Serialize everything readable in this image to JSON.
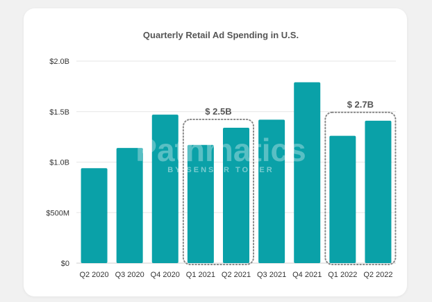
{
  "chart_data": {
    "type": "bar",
    "title": "Quarterly Retail Ad Spending in U.S.",
    "categories": [
      "Q2 2020",
      "Q3 2020",
      "Q4 2020",
      "Q1 2021",
      "Q2 2021",
      "Q3 2021",
      "Q4 2021",
      "Q1 2022",
      "Q2 2022"
    ],
    "values": [
      0.94,
      1.14,
      1.47,
      1.17,
      1.34,
      1.42,
      1.79,
      1.26,
      1.41
    ],
    "unit": "B USD",
    "ylim": [
      0,
      2.0
    ],
    "yticks": [
      {
        "value": 0,
        "label": "$0"
      },
      {
        "value": 0.5,
        "label": "$500M"
      },
      {
        "value": 1.0,
        "label": "$1.0B"
      },
      {
        "value": 1.5,
        "label": "$1.5B"
      },
      {
        "value": 2.0,
        "label": "$2.0B"
      }
    ],
    "bar_color": "#0aa1a8",
    "grid": true,
    "groups": [
      {
        "label": "$ 2.5B",
        "categories": [
          "Q1 2021",
          "Q2 2021"
        ]
      },
      {
        "label": "$ 2.7B",
        "categories": [
          "Q1 2022",
          "Q2 2022"
        ]
      }
    ],
    "watermark": {
      "text": "Pathmatics",
      "subtext": "BY SENSOR TOWER"
    }
  }
}
